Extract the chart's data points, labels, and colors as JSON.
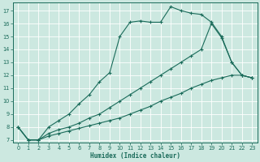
{
  "xlabel": "Humidex (Indice chaleur)",
  "bg_color": "#cce8e0",
  "grid_color": "#ffffff",
  "line_color": "#1a6b5a",
  "xlim": [
    -0.5,
    23.5
  ],
  "ylim": [
    6.8,
    17.6
  ],
  "yticks": [
    7,
    8,
    9,
    10,
    11,
    12,
    13,
    14,
    15,
    16,
    17
  ],
  "xticks": [
    0,
    1,
    2,
    3,
    4,
    5,
    6,
    7,
    8,
    9,
    10,
    11,
    12,
    13,
    14,
    15,
    16,
    17,
    18,
    19,
    20,
    21,
    22,
    23
  ],
  "lines": [
    {
      "x": [
        0,
        1,
        2,
        3,
        4,
        5,
        6,
        7,
        8,
        9,
        10,
        11,
        12,
        13,
        14,
        15,
        16,
        17,
        18,
        19,
        20,
        21,
        22,
        23
      ],
      "y": [
        8,
        7,
        7,
        8,
        8.5,
        9,
        9.8,
        10.5,
        11.5,
        12.2,
        15.0,
        16.1,
        16.2,
        16.1,
        16.1,
        17.3,
        17.0,
        16.8,
        16.7,
        16.1,
        15.0,
        13.0,
        12.0,
        11.8
      ]
    },
    {
      "x": [
        0,
        1,
        2,
        3,
        4,
        5,
        6,
        7,
        8,
        9,
        10,
        11,
        12,
        13,
        14,
        15,
        16,
        17,
        18,
        19,
        20,
        21,
        22,
        23
      ],
      "y": [
        8,
        7,
        7,
        7.5,
        7.8,
        8.0,
        8.3,
        8.7,
        9.0,
        9.5,
        10.0,
        10.5,
        11.0,
        11.5,
        12.0,
        12.5,
        13.0,
        13.5,
        14.0,
        16.0,
        14.9,
        13.0,
        12.0,
        11.8
      ]
    },
    {
      "x": [
        0,
        1,
        2,
        3,
        4,
        5,
        6,
        7,
        8,
        9,
        10,
        11,
        12,
        13,
        14,
        15,
        16,
        17,
        18,
        19,
        20,
        21,
        22,
        23
      ],
      "y": [
        8,
        7,
        7,
        7.3,
        7.5,
        7.7,
        7.9,
        8.1,
        8.3,
        8.5,
        8.7,
        9.0,
        9.3,
        9.6,
        10.0,
        10.3,
        10.6,
        11.0,
        11.3,
        11.6,
        11.8,
        12.0,
        12.0,
        11.8
      ]
    }
  ]
}
